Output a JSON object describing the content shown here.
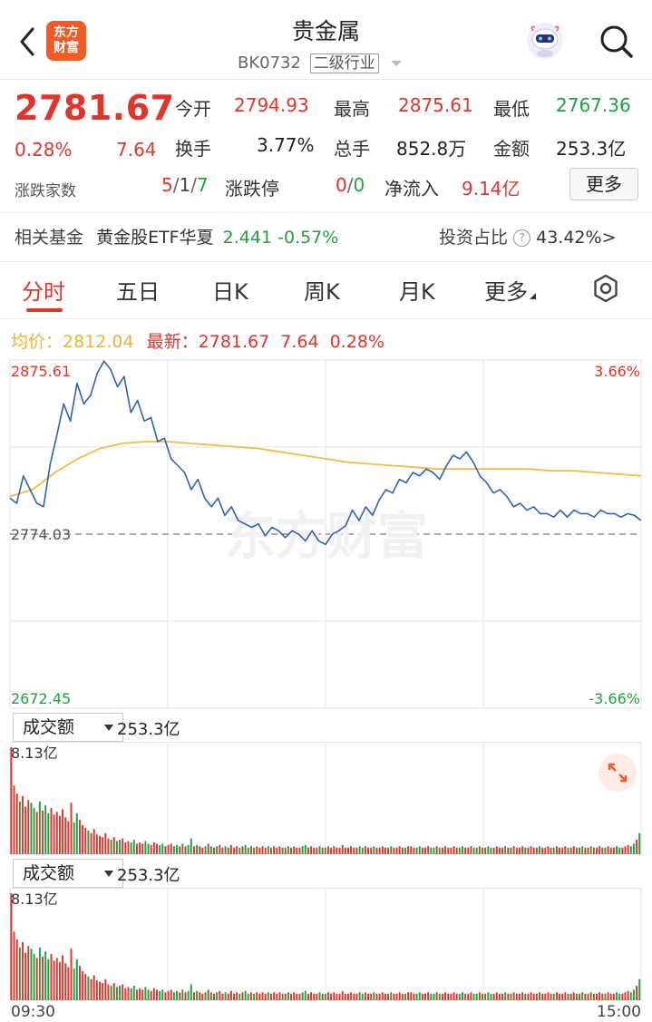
{
  "header": {
    "title": "贵金属",
    "code": "BK0732",
    "category": "二级行业",
    "logo_text": [
      "东方",
      "财富"
    ]
  },
  "quote": {
    "price": "2781.67",
    "change_pct": "0.28%",
    "change": "7.64",
    "open_label": "今开",
    "open": "2794.93",
    "high_label": "最高",
    "high": "2875.61",
    "low_label": "最低",
    "low": "2767.36",
    "turnover_label": "换手",
    "turnover": "3.77%",
    "volume_label": "总手",
    "volume": "852.8万",
    "amount_label": "金额",
    "amount": "253.3亿",
    "updown_label": "涨跌家数",
    "up": "5",
    "flat": "1",
    "down": "7",
    "limit_label": "涨跌停",
    "limit_up": "0",
    "limit_down": "0",
    "netflow_label": "净流入",
    "netflow": "9.14亿",
    "more_label": "更多"
  },
  "fund": {
    "label": "相关基金",
    "name": "黄金股ETF华夏",
    "price": "2.441",
    "change": "-0.57%",
    "ratio_label": "投资占比",
    "ratio": "43.42%"
  },
  "tabs": [
    "分时",
    "五日",
    "日K",
    "周K",
    "月K",
    "更多"
  ],
  "summary": {
    "avg_label": "均价：",
    "avg": "2812.04",
    "latest_label": "最新：",
    "latest": "2781.67",
    "change": "7.64",
    "pct": "0.28%"
  },
  "chart_data": {
    "type": "line",
    "y_max": "2875.61",
    "y_ref": "2774.03",
    "y_min": "2672.45",
    "pct_max": "3.66%",
    "pct_min": "-3.66%",
    "ylim": [
      2672.45,
      2875.61
    ],
    "reference": 2774.03,
    "watermark": "东方财富",
    "series": [
      {
        "values": [
          2795,
          2792,
          2808,
          2800,
          2792,
          2790,
          2815,
          2832,
          2850,
          2840,
          2862,
          2850,
          2855,
          2868,
          2875,
          2870,
          2860,
          2866,
          2845,
          2852,
          2840,
          2842,
          2828,
          2830,
          2818,
          2814,
          2810,
          2800,
          2806,
          2795,
          2790,
          2795,
          2785,
          2790,
          2782,
          2780,
          2778,
          2780,
          2773,
          2778,
          2776,
          2772,
          2776,
          2774,
          2770,
          2776,
          2770,
          2768,
          2774,
          2776,
          2779,
          2788,
          2782,
          2790,
          2785,
          2794,
          2800,
          2798,
          2806,
          2804,
          2810,
          2808,
          2812,
          2810,
          2806,
          2814,
          2820,
          2818,
          2822,
          2816,
          2808,
          2804,
          2798,
          2800,
          2796,
          2790,
          2792,
          2788,
          2790,
          2786,
          2786,
          2784,
          2788,
          2784,
          2788,
          2786,
          2786,
          2784,
          2788,
          2786,
          2786,
          2784,
          2786,
          2785,
          2782
        ]
      },
      {
        "values": [
          2796,
          2800,
          2810,
          2818,
          2824,
          2827,
          2828,
          2828,
          2827,
          2826,
          2825,
          2824,
          2822,
          2820,
          2818,
          2816,
          2815,
          2814,
          2813,
          2812,
          2812,
          2812,
          2812,
          2812,
          2811,
          2811,
          2810,
          2809,
          2808
        ]
      }
    ]
  },
  "volume_panels": [
    {
      "label": "成交额",
      "total": "253.3亿",
      "max": "8.13亿"
    },
    {
      "label": "成交额",
      "total": "253.3亿",
      "max": "8.13亿"
    }
  ],
  "volume_data": [
    8.1,
    5.2,
    4.6,
    4.0,
    4.4,
    3.6,
    4.1,
    3.9,
    3.5,
    3.2,
    4.0,
    3.3,
    3.7,
    3.1,
    3.5,
    3.0,
    3.2,
    2.9,
    3.4,
    2.8,
    2.5,
    3.9,
    2.4,
    3.1,
    2.6,
    2.2,
    2.0,
    1.8,
    1.6,
    1.9,
    1.5,
    1.4,
    1.3,
    1.6,
    1.2,
    1.1,
    1.3,
    1.0,
    1.1,
    1.2,
    0.9,
    1.0,
    0.9,
    1.1,
    0.8,
    0.9,
    0.8,
    1.0,
    0.8,
    0.7,
    0.9,
    0.8,
    0.7,
    0.8,
    0.6,
    0.7,
    0.8,
    0.6,
    0.7,
    0.6,
    0.8,
    0.6,
    0.7,
    1.2,
    0.6,
    0.7,
    0.6,
    0.5,
    0.6,
    0.8,
    0.6,
    0.5,
    0.6,
    0.7,
    0.5,
    0.6,
    0.5,
    0.7,
    0.5,
    0.6,
    0.5,
    0.6,
    0.7,
    0.5,
    0.6,
    0.5,
    0.6,
    0.5,
    0.6,
    0.5,
    0.6,
    0.5,
    0.6,
    0.5,
    0.6,
    0.5,
    0.5,
    0.6,
    0.5,
    0.6,
    0.5,
    0.5,
    0.6,
    0.7,
    0.5,
    0.6,
    0.5,
    0.5,
    0.6,
    0.5,
    0.5,
    0.6,
    0.5,
    0.6,
    0.5,
    0.5,
    0.7,
    0.5,
    0.5,
    0.6,
    0.5,
    0.5,
    0.6,
    0.5,
    0.6,
    0.5,
    0.5,
    0.6,
    0.5,
    0.5,
    0.6,
    0.5,
    0.5,
    0.6,
    0.5,
    0.5,
    0.6,
    0.5,
    0.5,
    0.6,
    0.6,
    0.5,
    0.5,
    0.6,
    0.5,
    0.5,
    0.6,
    0.5,
    0.5,
    0.6,
    0.5,
    0.5,
    0.6,
    0.5,
    0.5,
    0.6,
    0.5,
    0.5,
    0.6,
    0.5,
    0.5,
    0.6,
    0.5,
    0.5,
    0.6,
    0.5,
    0.5,
    0.6,
    0.5,
    0.5,
    0.6,
    0.5,
    0.5,
    0.6,
    0.5,
    0.5,
    0.6,
    0.5,
    0.5,
    0.6,
    0.5,
    0.5,
    0.6,
    0.5,
    0.5,
    0.6,
    0.5,
    0.5,
    0.6,
    0.5,
    0.5,
    0.6,
    0.5,
    0.5,
    0.6,
    0.5,
    0.5,
    0.6,
    0.5,
    0.5,
    0.6,
    0.5,
    0.5,
    0.6,
    0.5,
    0.5,
    0.6,
    0.5,
    0.5,
    0.6,
    0.5,
    0.5,
    0.6,
    0.5,
    0.5,
    0.6,
    0.7,
    0.6,
    0.8,
    1.1,
    1.6
  ],
  "time_axis": {
    "start": "09:30",
    "end": "15:00"
  },
  "colors": {
    "up": "#e0352b",
    "down": "#20a040",
    "line": "#2f63b2",
    "avg": "#f0be46",
    "logo": "#f25a24"
  },
  "icons": [
    "back-icon",
    "robot-avatar-icon",
    "search-icon",
    "chevron-down-icon",
    "help-icon",
    "settings-icon",
    "expand-icon"
  ]
}
